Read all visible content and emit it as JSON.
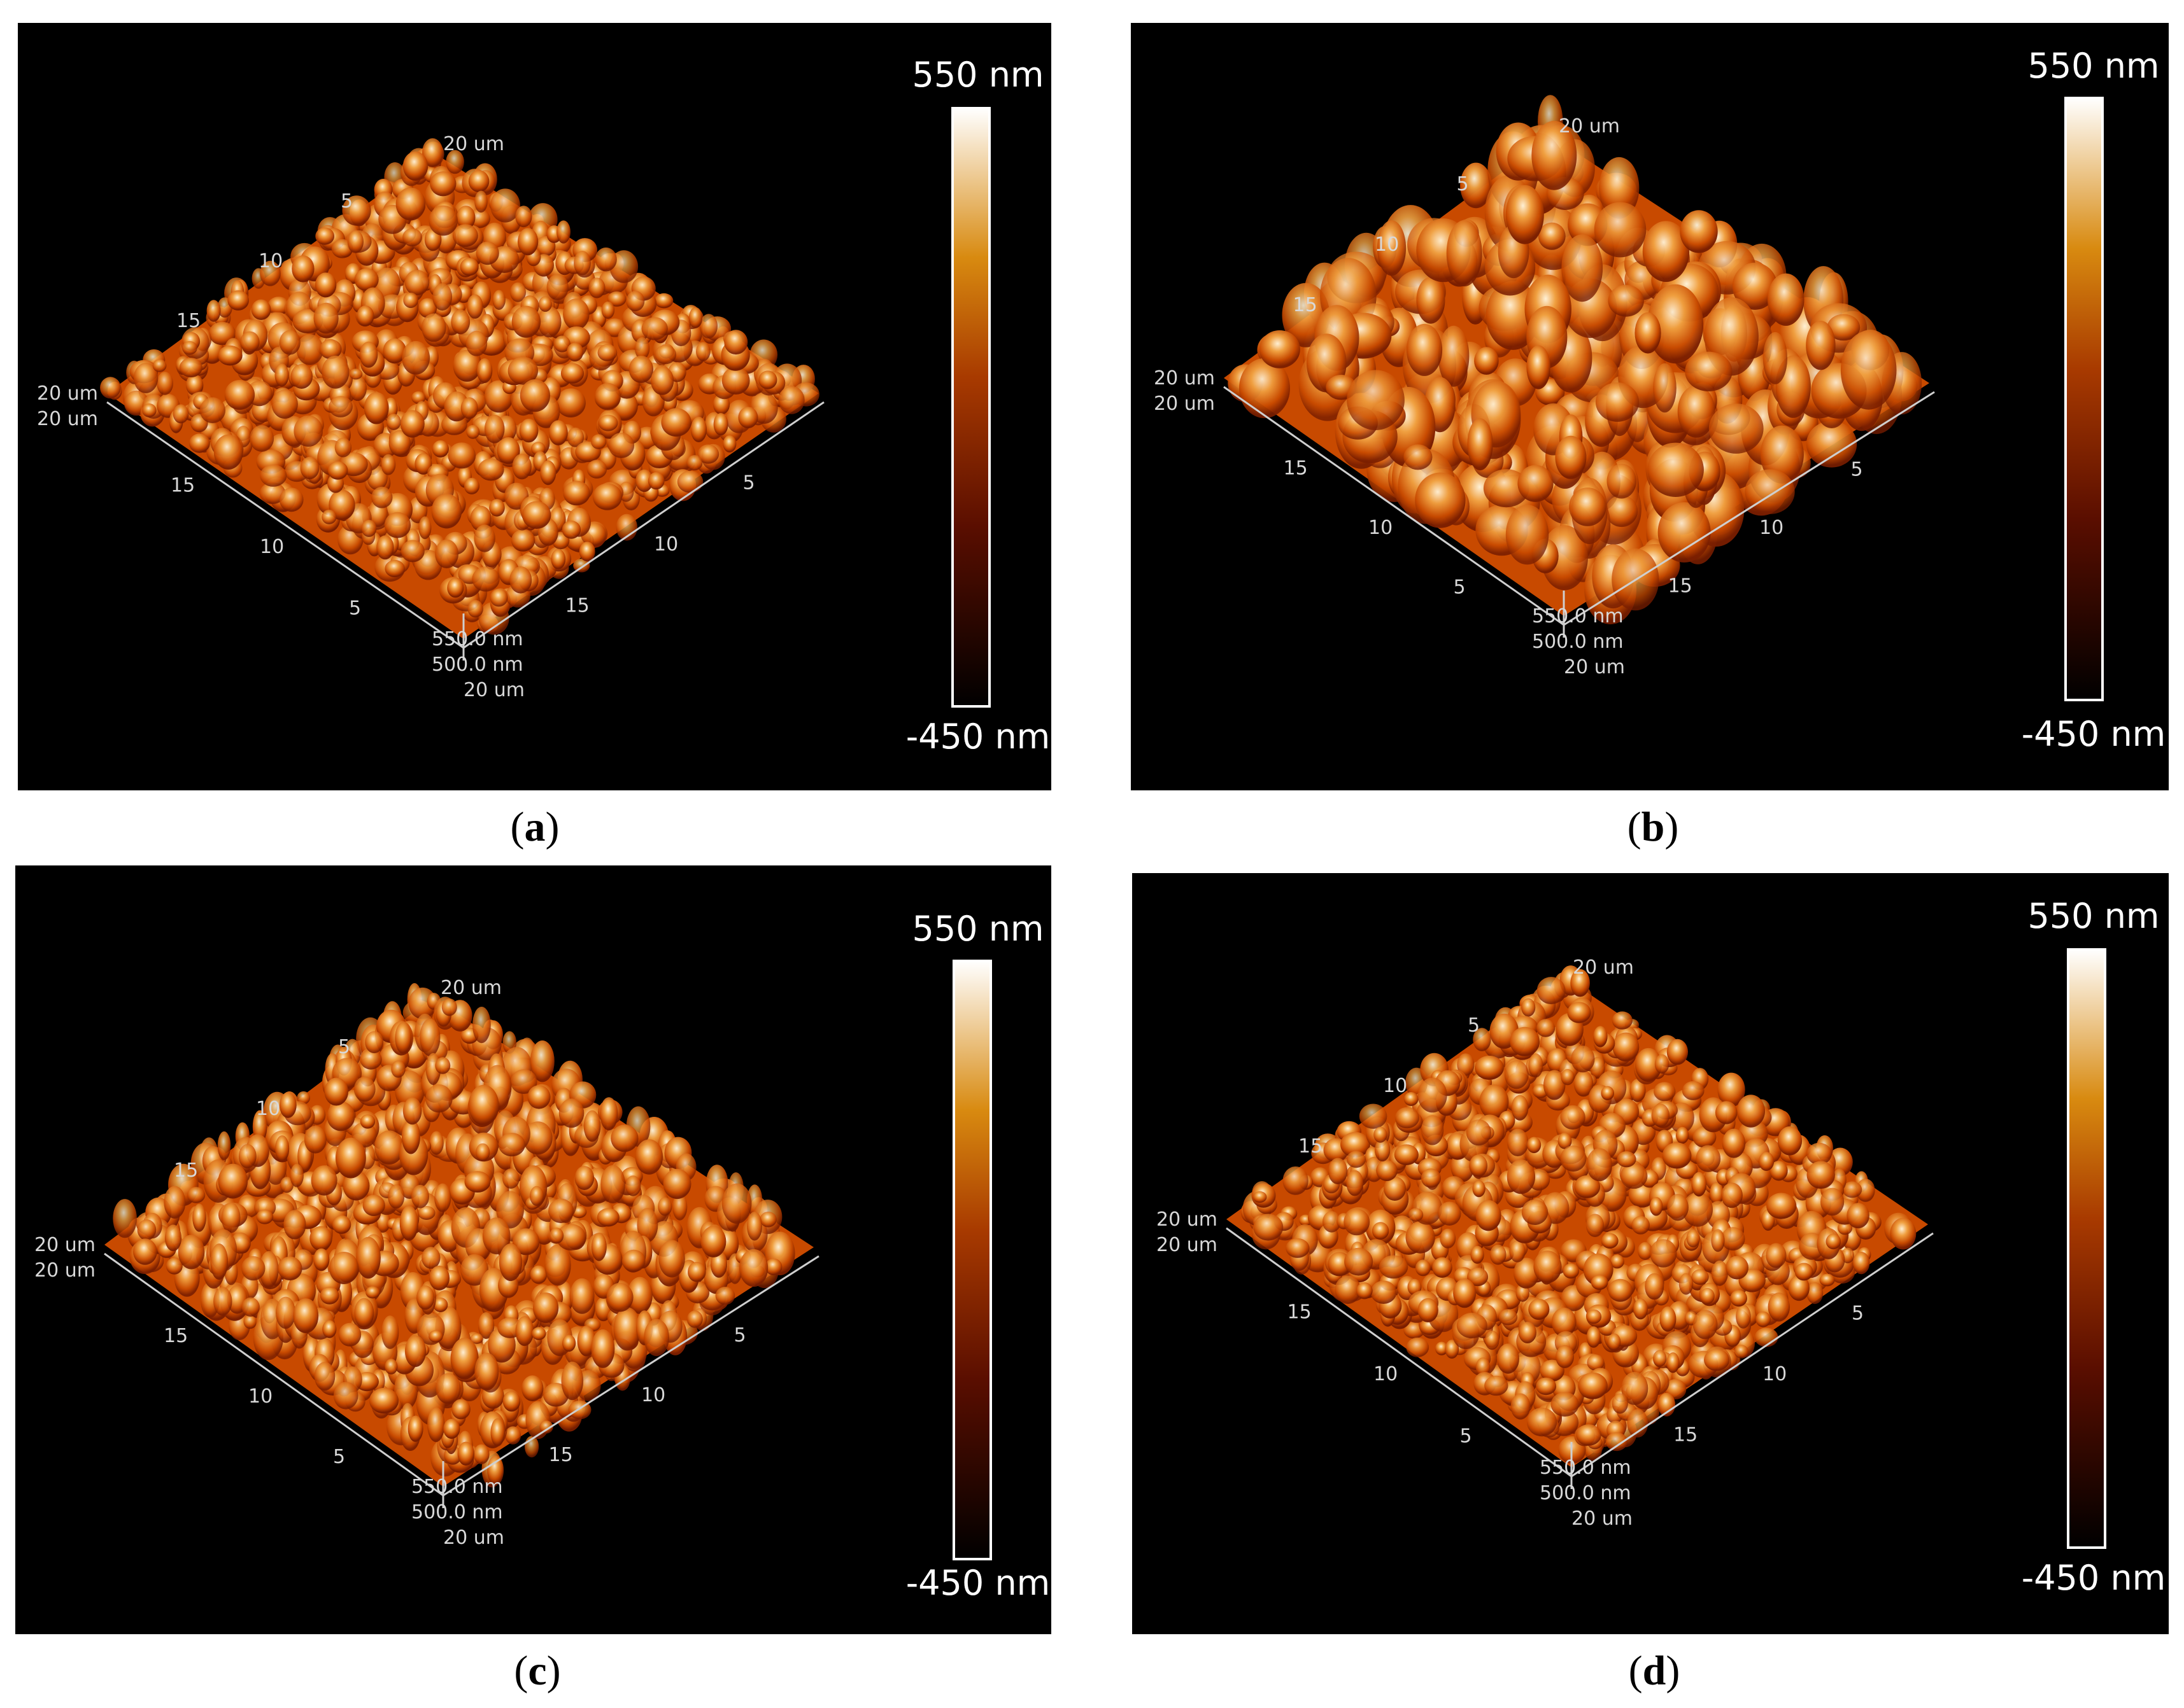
{
  "panels": [
    {
      "id": "a",
      "caption_open": "(",
      "caption_letter": "a",
      "caption_close": ")",
      "scale_max": "550 nm",
      "scale_min": "-450 nm",
      "axis_ticks": [
        "5",
        "10",
        "15",
        "20 um",
        "20 um",
        "15",
        "10",
        "5",
        "20 um",
        "550.0 nm",
        "500.0 nm",
        "5",
        "10",
        "15",
        "20 um"
      ],
      "roughness": "low"
    },
    {
      "id": "b",
      "caption_open": "(",
      "caption_letter": "b",
      "caption_close": ")",
      "scale_max": "550 nm",
      "scale_min": "-450 nm",
      "axis_ticks": [
        "5",
        "10",
        "15",
        "20 um",
        "20 um",
        "15",
        "10",
        "5",
        "20 um",
        "550.0 nm",
        "500.0 nm",
        "5",
        "10",
        "15",
        "20 um"
      ],
      "roughness": "high"
    },
    {
      "id": "c",
      "caption_open": "(",
      "caption_letter": "c",
      "caption_close": ")",
      "scale_max": "550 nm",
      "scale_min": "-450 nm",
      "axis_ticks": [
        "5",
        "10",
        "15",
        "20 um",
        "20 um",
        "15",
        "10",
        "5",
        "20 um",
        "550.0 nm",
        "500.0 nm",
        "5",
        "10",
        "15",
        "20 um"
      ],
      "roughness": "medium"
    },
    {
      "id": "d",
      "caption_open": "(",
      "caption_letter": "d",
      "caption_close": ")",
      "scale_max": "550 nm",
      "scale_min": "-450 nm",
      "axis_ticks": [
        "5",
        "10",
        "15",
        "20 um",
        "20 um",
        "15",
        "10",
        "5",
        "20 um",
        "550.0 nm",
        "500.0 nm",
        "5",
        "10",
        "15",
        "20 um"
      ],
      "roughness": "low"
    }
  ],
  "colors": {
    "panel_bg": "#000000",
    "surface_dark": "#7a1e00",
    "surface_mid": "#c84a00",
    "surface_light": "#f0a040",
    "peak": "#fff2d8"
  }
}
